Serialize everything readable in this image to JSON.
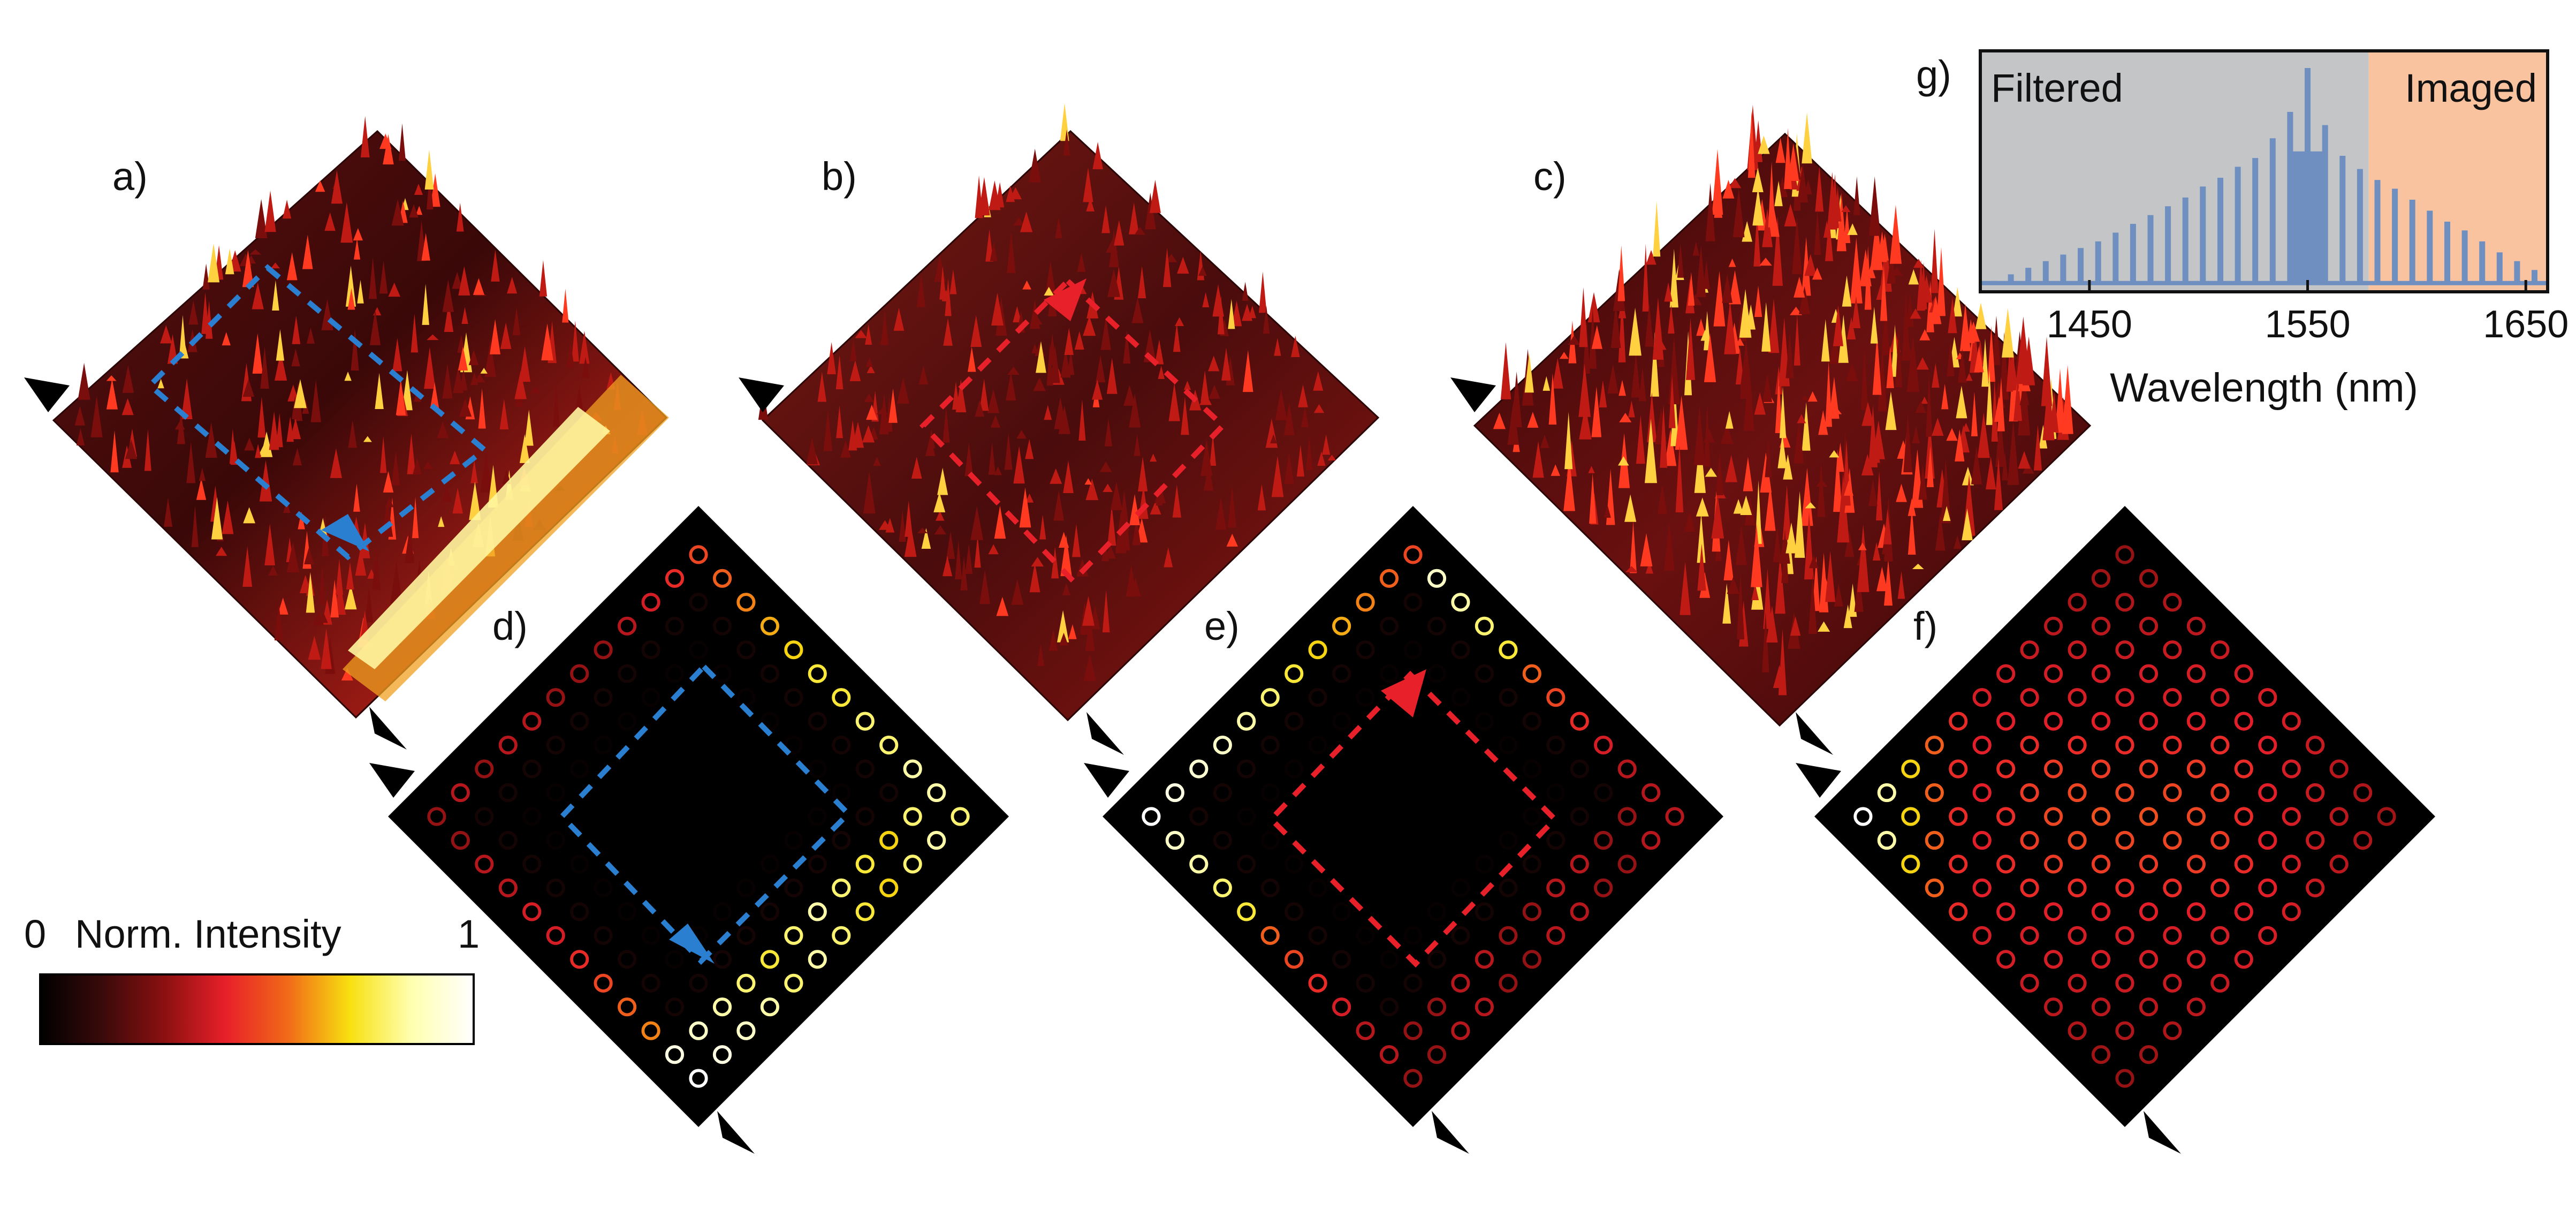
{
  "panel_labels": {
    "a": "a)",
    "b": "b)",
    "c": "c)",
    "d": "d)",
    "e": "e)",
    "f": "f)",
    "g": "g)"
  },
  "colorbar": {
    "min_label": "0",
    "title": "Norm. Intensity",
    "max_label": "1",
    "stops": [
      "#000000",
      "#3a0a0a",
      "#8b1010",
      "#e8202a",
      "#f06a18",
      "#f8e010",
      "#ffffb0",
      "#ffffff"
    ]
  },
  "colors": {
    "blue_path": "#2a7fd0",
    "red_path": "#e8202a",
    "filtered_band": "#c3c5c7",
    "imaged_band": "#f9c3a0",
    "spectrum": "#6f8fc0"
  },
  "chart_data": [
    {
      "id": "g",
      "type": "line",
      "xlabel": "Wavelength (nm)",
      "ylabel": "",
      "xlim": [
        1400,
        1660
      ],
      "ylim": [
        0,
        1
      ],
      "xticks": [
        1450,
        1550,
        1650
      ],
      "bands": [
        {
          "label": "Filtered",
          "x0": 1400,
          "x1": 1578
        },
        {
          "label": "Imaged",
          "x0": 1578,
          "x1": 1660
        }
      ],
      "comb_lines_nm": [
        1406,
        1414,
        1422,
        1430,
        1438,
        1446,
        1454,
        1462,
        1470,
        1478,
        1486,
        1494,
        1502,
        1510,
        1518,
        1526,
        1534,
        1542,
        1550,
        1558,
        1566,
        1574,
        1582,
        1590,
        1598,
        1606,
        1614,
        1622,
        1630,
        1638,
        1646,
        1654
      ],
      "comb_peak_values": [
        0.03,
        0.06,
        0.09,
        0.12,
        0.15,
        0.18,
        0.21,
        0.25,
        0.29,
        0.33,
        0.37,
        0.41,
        0.46,
        0.5,
        0.55,
        0.59,
        0.68,
        0.8,
        1.0,
        0.74,
        0.6,
        0.54,
        0.49,
        0.45,
        0.4,
        0.35,
        0.3,
        0.26,
        0.21,
        0.16,
        0.12,
        0.08
      ],
      "pump_wavelength": 1548,
      "pump_value": 1.0
    },
    {
      "id": "d",
      "type": "heatmap",
      "description_values": "ring lattice intensities, normalized 0-1",
      "grid": [
        [
          0.3,
          0.35,
          0.3,
          0.35,
          0.35,
          0.3,
          0.3,
          0.3,
          0.35,
          0.4,
          0.45,
          0.5
        ],
        [
          0.3,
          0.05,
          0.05,
          0.05,
          0.05,
          0.05,
          0.05,
          0.05,
          0.05,
          0.05,
          0.05,
          0.55
        ],
        [
          0.35,
          0.05,
          0.02,
          0.02,
          0.02,
          0.02,
          0.02,
          0.02,
          0.02,
          0.02,
          0.05,
          0.6
        ],
        [
          0.35,
          0.05,
          0.02,
          0.0,
          0.0,
          0.0,
          0.0,
          0.0,
          0.0,
          0.02,
          0.05,
          0.65
        ],
        [
          0.4,
          0.05,
          0.02,
          0.0,
          0.0,
          0.0,
          0.0,
          0.0,
          0.0,
          0.02,
          0.05,
          0.7
        ],
        [
          0.4,
          0.05,
          0.02,
          0.0,
          0.0,
          0.0,
          0.0,
          0.0,
          0.0,
          0.02,
          0.05,
          0.75
        ],
        [
          0.45,
          0.05,
          0.02,
          0.0,
          0.0,
          0.0,
          0.0,
          0.0,
          0.0,
          0.02,
          0.05,
          0.75
        ],
        [
          0.5,
          0.05,
          0.02,
          0.0,
          0.0,
          0.0,
          0.0,
          0.0,
          0.0,
          0.02,
          0.05,
          0.8
        ],
        [
          0.55,
          0.05,
          0.02,
          0.02,
          0.02,
          0.02,
          0.02,
          0.02,
          0.02,
          0.02,
          0.05,
          0.8
        ],
        [
          0.6,
          0.05,
          0.05,
          0.05,
          0.05,
          0.05,
          0.05,
          0.05,
          0.05,
          0.05,
          0.05,
          0.85
        ],
        [
          0.95,
          0.9,
          0.85,
          0.8,
          0.75,
          0.8,
          0.85,
          0.8,
          0.75,
          0.7,
          0.8,
          0.85
        ],
        [
          1.0,
          0.95,
          0.9,
          0.85,
          0.8,
          0.85,
          0.8,
          0.75,
          0.7,
          0.8,
          0.85,
          0.8
        ]
      ]
    },
    {
      "id": "e",
      "type": "heatmap",
      "description_values": "ring lattice intensities, normalized 0-1",
      "grid": [
        [
          1.0,
          0.95,
          0.92,
          0.9,
          0.85,
          0.8,
          0.75,
          0.7,
          0.65,
          0.6,
          0.55,
          0.5
        ],
        [
          0.9,
          0.05,
          0.05,
          0.05,
          0.05,
          0.05,
          0.05,
          0.05,
          0.05,
          0.05,
          0.05,
          0.9
        ],
        [
          0.85,
          0.05,
          0.02,
          0.02,
          0.02,
          0.02,
          0.02,
          0.02,
          0.02,
          0.02,
          0.05,
          0.85
        ],
        [
          0.8,
          0.05,
          0.02,
          0.0,
          0.0,
          0.0,
          0.0,
          0.0,
          0.0,
          0.02,
          0.05,
          0.8
        ],
        [
          0.75,
          0.05,
          0.02,
          0.0,
          0.0,
          0.0,
          0.0,
          0.0,
          0.0,
          0.02,
          0.05,
          0.75
        ],
        [
          0.55,
          0.05,
          0.02,
          0.0,
          0.0,
          0.0,
          0.0,
          0.0,
          0.0,
          0.02,
          0.05,
          0.55
        ],
        [
          0.5,
          0.05,
          0.02,
          0.0,
          0.0,
          0.0,
          0.0,
          0.0,
          0.0,
          0.02,
          0.05,
          0.5
        ],
        [
          0.45,
          0.05,
          0.02,
          0.0,
          0.0,
          0.0,
          0.0,
          0.0,
          0.0,
          0.02,
          0.05,
          0.45
        ],
        [
          0.4,
          0.05,
          0.02,
          0.02,
          0.02,
          0.02,
          0.02,
          0.02,
          0.02,
          0.02,
          0.05,
          0.4
        ],
        [
          0.35,
          0.05,
          0.05,
          0.05,
          0.05,
          0.05,
          0.05,
          0.05,
          0.05,
          0.05,
          0.05,
          0.35
        ],
        [
          0.35,
          0.3,
          0.3,
          0.35,
          0.35,
          0.3,
          0.3,
          0.35,
          0.35,
          0.3,
          0.3,
          0.35
        ],
        [
          0.3,
          0.3,
          0.35,
          0.35,
          0.3,
          0.3,
          0.35,
          0.35,
          0.3,
          0.3,
          0.35,
          0.35
        ]
      ]
    },
    {
      "id": "f",
      "type": "heatmap",
      "description_values": "ring lattice intensities, normalized 0-1",
      "grid": [
        [
          1.0,
          0.85,
          0.7,
          0.55,
          0.45,
          0.4,
          0.4,
          0.38,
          0.36,
          0.34,
          0.32,
          0.3
        ],
        [
          0.85,
          0.7,
          0.55,
          0.45,
          0.42,
          0.42,
          0.4,
          0.4,
          0.38,
          0.36,
          0.34,
          0.32
        ],
        [
          0.7,
          0.55,
          0.45,
          0.42,
          0.45,
          0.45,
          0.42,
          0.4,
          0.4,
          0.38,
          0.36,
          0.34
        ],
        [
          0.55,
          0.45,
          0.42,
          0.45,
          0.48,
          0.48,
          0.45,
          0.42,
          0.4,
          0.4,
          0.38,
          0.36
        ],
        [
          0.45,
          0.42,
          0.45,
          0.48,
          0.5,
          0.5,
          0.48,
          0.45,
          0.42,
          0.4,
          0.4,
          0.38
        ],
        [
          0.4,
          0.42,
          0.45,
          0.48,
          0.5,
          0.52,
          0.5,
          0.48,
          0.45,
          0.42,
          0.4,
          0.4
        ],
        [
          0.4,
          0.4,
          0.42,
          0.45,
          0.48,
          0.5,
          0.52,
          0.5,
          0.48,
          0.45,
          0.42,
          0.4
        ],
        [
          0.38,
          0.4,
          0.4,
          0.42,
          0.45,
          0.48,
          0.5,
          0.5,
          0.48,
          0.45,
          0.42,
          0.4
        ],
        [
          0.36,
          0.38,
          0.4,
          0.4,
          0.42,
          0.45,
          0.48,
          0.48,
          0.45,
          0.42,
          0.4,
          0.38
        ],
        [
          0.34,
          0.36,
          0.38,
          0.4,
          0.4,
          0.42,
          0.45,
          0.45,
          0.42,
          0.4,
          0.38,
          0.36
        ],
        [
          0.32,
          0.34,
          0.36,
          0.38,
          0.4,
          0.4,
          0.42,
          0.42,
          0.4,
          0.38,
          0.36,
          0.34
        ],
        [
          0.3,
          0.32,
          0.34,
          0.36,
          0.38,
          0.4,
          0.4,
          0.4,
          0.38,
          0.36,
          0.34,
          0.32
        ]
      ]
    }
  ]
}
